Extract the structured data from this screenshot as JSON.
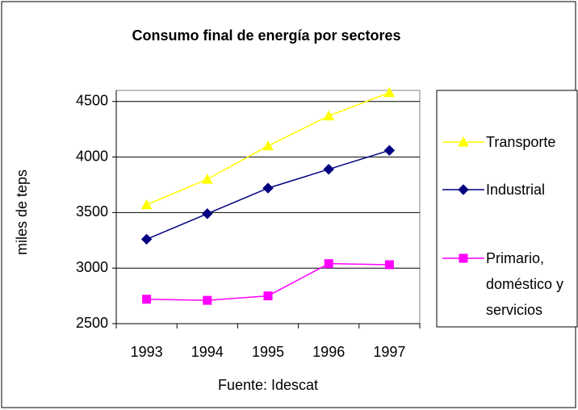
{
  "chart_data": {
    "type": "line",
    "title": "Consumo final de energía por sectores",
    "x_label": "Fuente: Idescat",
    "y_label": "miles de teps",
    "categories": [
      "1993",
      "1994",
      "1995",
      "1996",
      "1997"
    ],
    "series": [
      {
        "name": "Transporte",
        "color": "#ffff00",
        "marker": "triangle",
        "values": [
          3570,
          3800,
          4100,
          4370,
          4580
        ]
      },
      {
        "name": "Industrial",
        "color": "#000080",
        "marker": "diamond",
        "values": [
          3260,
          3490,
          3720,
          3890,
          4060
        ]
      },
      {
        "name": "Primario, doméstico y servicios",
        "color": "#ff00ff",
        "marker": "square",
        "values": [
          2720,
          2710,
          2750,
          3040,
          3030
        ]
      }
    ],
    "ylim": [
      2500,
      4600
    ],
    "yticks": [
      2500,
      3000,
      3500,
      4000,
      4500
    ],
    "grid": true,
    "legend": "right"
  }
}
